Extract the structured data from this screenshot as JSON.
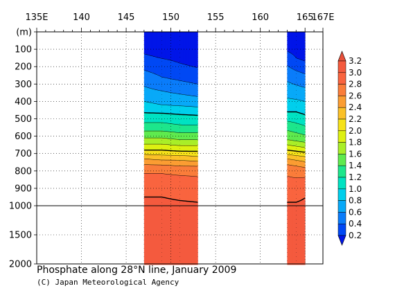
{
  "caption": {
    "title": "Phosphate along 28°N line, January 2009",
    "credit": "(C) Japan Meteorological Agency"
  },
  "chart_data": {
    "type": "heatmap",
    "title": "Phosphate along 28°N line, January 2009",
    "xlabel": "",
    "ylabel": "",
    "depth_unit_label": "(m)",
    "x_ticks": [
      {
        "value": 135,
        "label": "135E"
      },
      {
        "value": 140,
        "label": "140"
      },
      {
        "value": 145,
        "label": "145"
      },
      {
        "value": 150,
        "label": "150"
      },
      {
        "value": 155,
        "label": "155"
      },
      {
        "value": 160,
        "label": "160"
      },
      {
        "value": 165,
        "label": "165"
      },
      {
        "value": 167,
        "label": "167E"
      }
    ],
    "y_ticks": [
      0,
      100,
      200,
      300,
      400,
      500,
      600,
      700,
      800,
      900,
      1000,
      1500,
      2000
    ],
    "xlim": [
      135,
      167
    ],
    "ylim": [
      0,
      2000
    ],
    "y_scale": "piecewise linear (0-1000 m upper panel, 1000-2000 m lower panel)",
    "gridlines": "dotted at major ticks",
    "colorbar": {
      "placement": "right",
      "levels": [
        0.2,
        0.4,
        0.6,
        0.8,
        1.0,
        1.2,
        1.4,
        1.6,
        1.8,
        2.0,
        2.2,
        2.4,
        2.6,
        2.8,
        3.0,
        3.2
      ],
      "colors": [
        "#0015e8",
        "#0048f4",
        "#0a7cfa",
        "#08a9f8",
        "#00cfec",
        "#00e2c2",
        "#1de68c",
        "#5fea4e",
        "#a9ee28",
        "#ddf012",
        "#f6e21a",
        "#fbc128",
        "#fb9d32",
        "#fa7d3a",
        "#f9643f",
        "#f45a3e",
        "#e8503a"
      ],
      "extend": "both"
    },
    "sections": [
      {
        "name": "147-153E",
        "lon_start": 147.0,
        "lon_end": 153.0,
        "stations": [
          147.0,
          149.0,
          151.0,
          153.0
        ],
        "profiles": [
          {
            "depth": 0,
            "values": [
              0.1,
              0.1,
              0.1,
              0.1
            ]
          },
          {
            "depth": 100,
            "values": [
              0.15,
              0.1,
              0.1,
              0.1
            ]
          },
          {
            "depth": 180,
            "values": [
              0.3,
              0.25,
              0.2,
              0.15
            ]
          },
          {
            "depth": 260,
            "values": [
              0.5,
              0.4,
              0.35,
              0.3
            ]
          },
          {
            "depth": 340,
            "values": [
              0.65,
              0.6,
              0.55,
              0.5
            ]
          },
          {
            "depth": 420,
            "values": [
              0.85,
              0.8,
              0.78,
              0.75
            ]
          },
          {
            "depth": 480,
            "values": [
              1.05,
              1.05,
              1.02,
              1.0
            ]
          },
          {
            "depth": 550,
            "values": [
              1.3,
              1.3,
              1.25,
              1.25
            ]
          },
          {
            "depth": 620,
            "values": [
              1.65,
              1.65,
              1.6,
              1.6
            ]
          },
          {
            "depth": 680,
            "values": [
              2.0,
              2.0,
              1.95,
              1.95
            ]
          },
          {
            "depth": 730,
            "values": [
              2.4,
              2.35,
              2.35,
              2.3
            ]
          },
          {
            "depth": 780,
            "values": [
              2.7,
              2.7,
              2.65,
              2.65
            ]
          },
          {
            "depth": 850,
            "values": [
              2.9,
              2.9,
              2.88,
              2.85
            ]
          },
          {
            "depth": 950,
            "values": [
              3.0,
              3.0,
              2.98,
              2.97
            ]
          },
          {
            "depth": 1000,
            "values": [
              3.05,
              3.04,
              3.03,
              3.02
            ]
          },
          {
            "depth": 1300,
            "values": [
              3.1,
              3.1,
              3.1,
              3.1
            ]
          },
          {
            "depth": 1600,
            "values": [
              3.15,
              3.14,
              3.13,
              3.12
            ]
          },
          {
            "depth": 2000,
            "values": [
              3.15,
              3.15,
              3.15,
              3.15
            ]
          }
        ]
      },
      {
        "name": "163-165E",
        "lon_start": 163.0,
        "lon_end": 165.0,
        "stations": [
          163.0,
          164.0,
          165.0
        ],
        "profiles": [
          {
            "depth": 0,
            "values": [
              0.1,
              0.1,
              0.1
            ]
          },
          {
            "depth": 80,
            "values": [
              0.12,
              0.1,
              0.1
            ]
          },
          {
            "depth": 150,
            "values": [
              0.3,
              0.2,
              0.15
            ]
          },
          {
            "depth": 260,
            "values": [
              0.55,
              0.5,
              0.45
            ]
          },
          {
            "depth": 360,
            "values": [
              0.75,
              0.72,
              0.7
            ]
          },
          {
            "depth": 460,
            "values": [
              1.0,
              1.0,
              0.95
            ]
          },
          {
            "depth": 540,
            "values": [
              1.3,
              1.25,
              1.2
            ]
          },
          {
            "depth": 620,
            "values": [
              1.6,
              1.55,
              1.5
            ]
          },
          {
            "depth": 680,
            "values": [
              2.0,
              1.95,
              1.9
            ]
          },
          {
            "depth": 730,
            "values": [
              2.4,
              2.35,
              2.3
            ]
          },
          {
            "depth": 780,
            "values": [
              2.7,
              2.65,
              2.6
            ]
          },
          {
            "depth": 880,
            "values": [
              2.9,
              2.9,
              2.95
            ]
          },
          {
            "depth": 1000,
            "values": [
              3.02,
              3.02,
              3.03
            ]
          },
          {
            "depth": 1400,
            "values": [
              3.1,
              3.1,
              3.1
            ]
          },
          {
            "depth": 2000,
            "values": [
              3.15,
              3.15,
              3.15
            ]
          }
        ]
      }
    ]
  }
}
